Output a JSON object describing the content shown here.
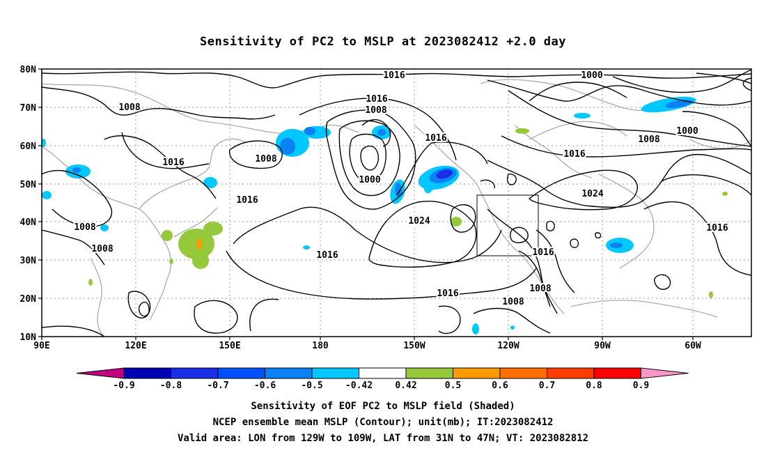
{
  "title": "Sensitivity of PC2 to MSLP at 2023082412 +2.0 day",
  "axes": {
    "lat_labels": [
      "80N",
      "70N",
      "60N",
      "50N",
      "40N",
      "30N",
      "20N",
      "10N"
    ],
    "lon_labels": [
      "90E",
      "120E",
      "150E",
      "180",
      "150W",
      "120W",
      "90W",
      "60W"
    ]
  },
  "contour_labels": [
    "1016",
    "1000",
    "1016",
    "1008",
    "1008",
    "1016",
    "1008",
    "1000",
    "1016",
    "1016",
    "1016",
    "1008",
    "1016",
    "1000",
    "1016",
    "1024",
    "1024",
    "1008",
    "1008",
    "1016",
    "1016",
    "1008",
    "1016"
  ],
  "colorbar": {
    "labels": [
      "-0.9",
      "-0.8",
      "-0.7",
      "-0.6",
      "-0.5",
      "-0.42",
      "0.42",
      "0.5",
      "0.6",
      "0.7",
      "0.8",
      "0.9"
    ],
    "colors": [
      "#c00080",
      "#0000b4",
      "#1a2ee6",
      "#0050ff",
      "#0a82f5",
      "#00c8ff",
      "#ffffff",
      "#96c83c",
      "#ff9b00",
      "#ff6e00",
      "#ff3c00",
      "#ff0000",
      "#ff96c8"
    ]
  },
  "captions": [
    "Sensitivity of EOF PC2 to MSLP field (Shaded)",
    "NCEP ensemble mean MSLP (Contour); unit(mb); IT:2023082412",
    "Valid area: LON from 129W to 109W, LAT from 31N to 47N; VT: 2023082812"
  ]
}
